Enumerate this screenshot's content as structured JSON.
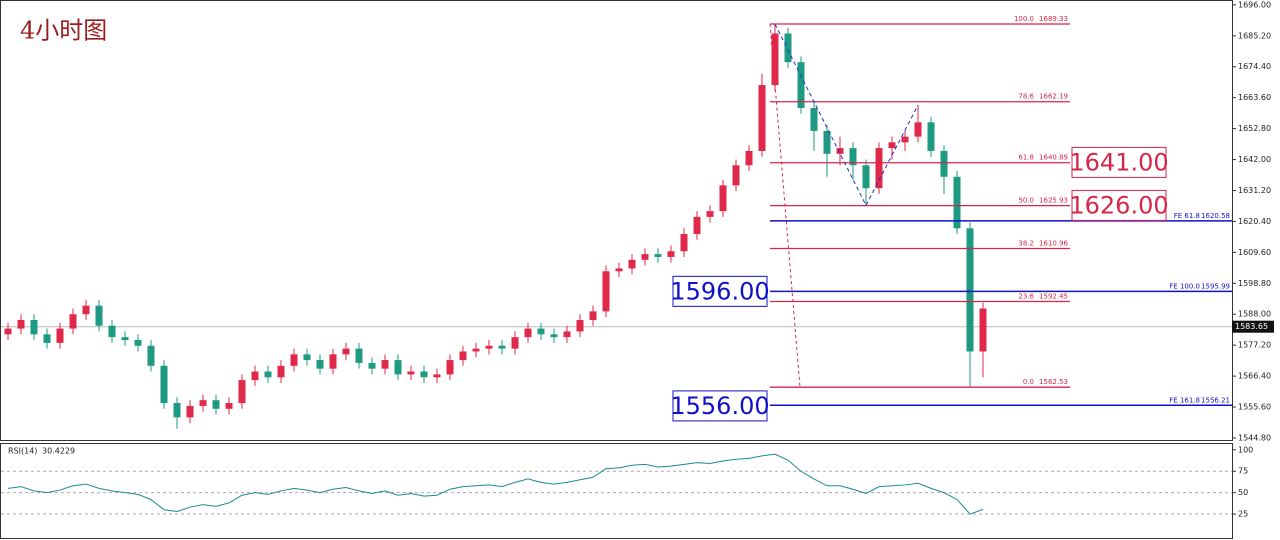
{
  "chart_data": {
    "type": "candlestick",
    "title": "4小时图",
    "up_color": "#e0284a",
    "down_color": "#1f9a82",
    "open": [
      1581,
      1583,
      1586,
      1581,
      1578,
      1583,
      1588,
      1591,
      1584,
      1580,
      1579,
      1577,
      1570,
      1557,
      1552,
      1556,
      1558,
      1555,
      1557,
      1565,
      1568,
      1566,
      1570,
      1574,
      1572,
      1569,
      1574,
      1576,
      1571,
      1569,
      1572,
      1567,
      1568,
      1566,
      1567,
      1572,
      1575,
      1576,
      1577,
      1576,
      1580,
      1583,
      1581,
      1580,
      1582,
      1586,
      1589,
      1603,
      1604,
      1607,
      1609,
      1608,
      1610,
      1616,
      1622,
      1624,
      1633,
      1640,
      1645,
      1668,
      1686,
      1676,
      1660,
      1652,
      1644,
      1646,
      1640,
      1632,
      1646,
      1648,
      1650,
      1655,
      1645,
      1636,
      1618,
      1575
    ],
    "high": [
      1585,
      1588,
      1588,
      1583,
      1585,
      1590,
      1593,
      1593,
      1586,
      1582,
      1581,
      1579,
      1572,
      1559,
      1558,
      1560,
      1560,
      1559,
      1567,
      1570,
      1570,
      1572,
      1576,
      1576,
      1574,
      1576,
      1578,
      1578,
      1573,
      1574,
      1574,
      1570,
      1570,
      1569,
      1574,
      1577,
      1578,
      1579,
      1579,
      1582,
      1585,
      1585,
      1583,
      1584,
      1588,
      1591,
      1605,
      1606,
      1609,
      1611,
      1611,
      1612,
      1618,
      1624,
      1626,
      1635,
      1642,
      1647,
      1672,
      1689.3,
      1688,
      1678,
      1662,
      1654,
      1650,
      1648,
      1642,
      1648,
      1650,
      1652,
      1661,
      1657,
      1647,
      1638,
      1620,
      1592
    ],
    "low": [
      1579,
      1581,
      1579,
      1576,
      1576,
      1581,
      1586,
      1582,
      1578,
      1577,
      1575,
      1568,
      1555,
      1548,
      1550,
      1554,
      1553,
      1553,
      1555,
      1563,
      1564,
      1564,
      1568,
      1570,
      1567,
      1567,
      1572,
      1569,
      1567,
      1567,
      1565,
      1565,
      1564,
      1564,
      1565,
      1570,
      1573,
      1574,
      1574,
      1574,
      1578,
      1579,
      1578,
      1578,
      1580,
      1584,
      1587,
      1601,
      1602,
      1605,
      1606,
      1606,
      1608,
      1614,
      1620,
      1622,
      1631,
      1638,
      1643,
      1666,
      1674,
      1658,
      1645,
      1636,
      1640,
      1635,
      1626,
      1630,
      1642,
      1645,
      1648,
      1643,
      1630,
      1616,
      1562.5,
      1566
    ],
    "close": [
      1583,
      1586,
      1581,
      1578,
      1583,
      1588,
      1591,
      1584,
      1580,
      1579,
      1577,
      1570,
      1557,
      1552,
      1556,
      1558,
      1555,
      1557,
      1565,
      1568,
      1566,
      1570,
      1574,
      1572,
      1569,
      1574,
      1576,
      1571,
      1569,
      1572,
      1567,
      1568,
      1566,
      1567,
      1572,
      1575,
      1576,
      1577,
      1576,
      1580,
      1583,
      1581,
      1580,
      1582,
      1586,
      1589,
      1603,
      1604,
      1607,
      1609,
      1608,
      1610,
      1616,
      1622,
      1624,
      1633,
      1640,
      1645,
      1668,
      1686,
      1676,
      1660,
      1652,
      1644,
      1646,
      1640,
      1632,
      1646,
      1648,
      1650,
      1655,
      1645,
      1636,
      1618,
      1575,
      1590
    ],
    "ylim": [
      1544.1,
      1697.7
    ],
    "yticks": [
      {
        "value": 1696,
        "label": "1696.00"
      },
      {
        "value": 1685.2,
        "label": "1685.20"
      },
      {
        "value": 1674.4,
        "label": "1674.40"
      },
      {
        "value": 1663.6,
        "label": "1663.60"
      },
      {
        "value": 1652.8,
        "label": "1652.80"
      },
      {
        "value": 1642,
        "label": "1642.00"
      },
      {
        "value": 1631.2,
        "label": "1631.20"
      },
      {
        "value": 1620.4,
        "label": "1620.40"
      },
      {
        "value": 1609.6,
        "label": "1609.60"
      },
      {
        "value": 1598.8,
        "label": "1598.80"
      },
      {
        "value": 1588,
        "label": "1588.00"
      },
      {
        "value": 1577.2,
        "label": "1577.20"
      },
      {
        "value": 1566.4,
        "label": "1566.40"
      },
      {
        "value": 1555.6,
        "label": "1555.60"
      },
      {
        "value": 1544.8,
        "label": "1544.80"
      }
    ],
    "last_price": 1583.65,
    "fib_retracement": [
      {
        "level": "100.0",
        "value": 1689.33
      },
      {
        "level": "78.6",
        "value": 1662.19
      },
      {
        "level": "61.8",
        "value": 1640.89
      },
      {
        "level": "50.0",
        "value": 1625.93
      },
      {
        "level": "38.2",
        "value": 1610.96
      },
      {
        "level": "23.6",
        "value": 1592.45
      },
      {
        "level": "0.0",
        "value": 1562.53
      }
    ],
    "fib_expansion": [
      {
        "level": "FE 61.8",
        "value": 1620.58
      },
      {
        "level": "FE 100.0",
        "value": 1595.99
      },
      {
        "level": "FE 161.8",
        "value": 1556.21
      }
    ],
    "price_boxes": [
      {
        "label": "1641.00",
        "value": 1641,
        "color": "#d6264a",
        "side": "right"
      },
      {
        "label": "1626.00",
        "value": 1626,
        "color": "#d6264a",
        "side": "right"
      },
      {
        "label": "1596.00",
        "value": 1596,
        "color": "#1010c8",
        "side": "left"
      },
      {
        "label": "1556.00",
        "value": 1556,
        "color": "#1010c8",
        "side": "left"
      }
    ],
    "rsi": {
      "name": "RSI(14)",
      "color": "#1b8a8f",
      "values": [
        55,
        57,
        52,
        50,
        53,
        58,
        60,
        55,
        52,
        50,
        48,
        42,
        30,
        28,
        33,
        36,
        34,
        38,
        47,
        50,
        48,
        52,
        55,
        53,
        50,
        54,
        56,
        52,
        49,
        52,
        47,
        49,
        46,
        47,
        54,
        57,
        58,
        59,
        57,
        62,
        66,
        62,
        60,
        62,
        65,
        68,
        78,
        79,
        82,
        83,
        80,
        81,
        83,
        85,
        84,
        87,
        89,
        90,
        93,
        95,
        88,
        75,
        66,
        58,
        58,
        54,
        49,
        57,
        58,
        59,
        61,
        55,
        50,
        42,
        25,
        30.4229
      ],
      "ylim": [
        -3,
        108
      ],
      "yticks": [
        100,
        75,
        50,
        25
      ],
      "levels": [
        75,
        50,
        25
      ]
    }
  }
}
